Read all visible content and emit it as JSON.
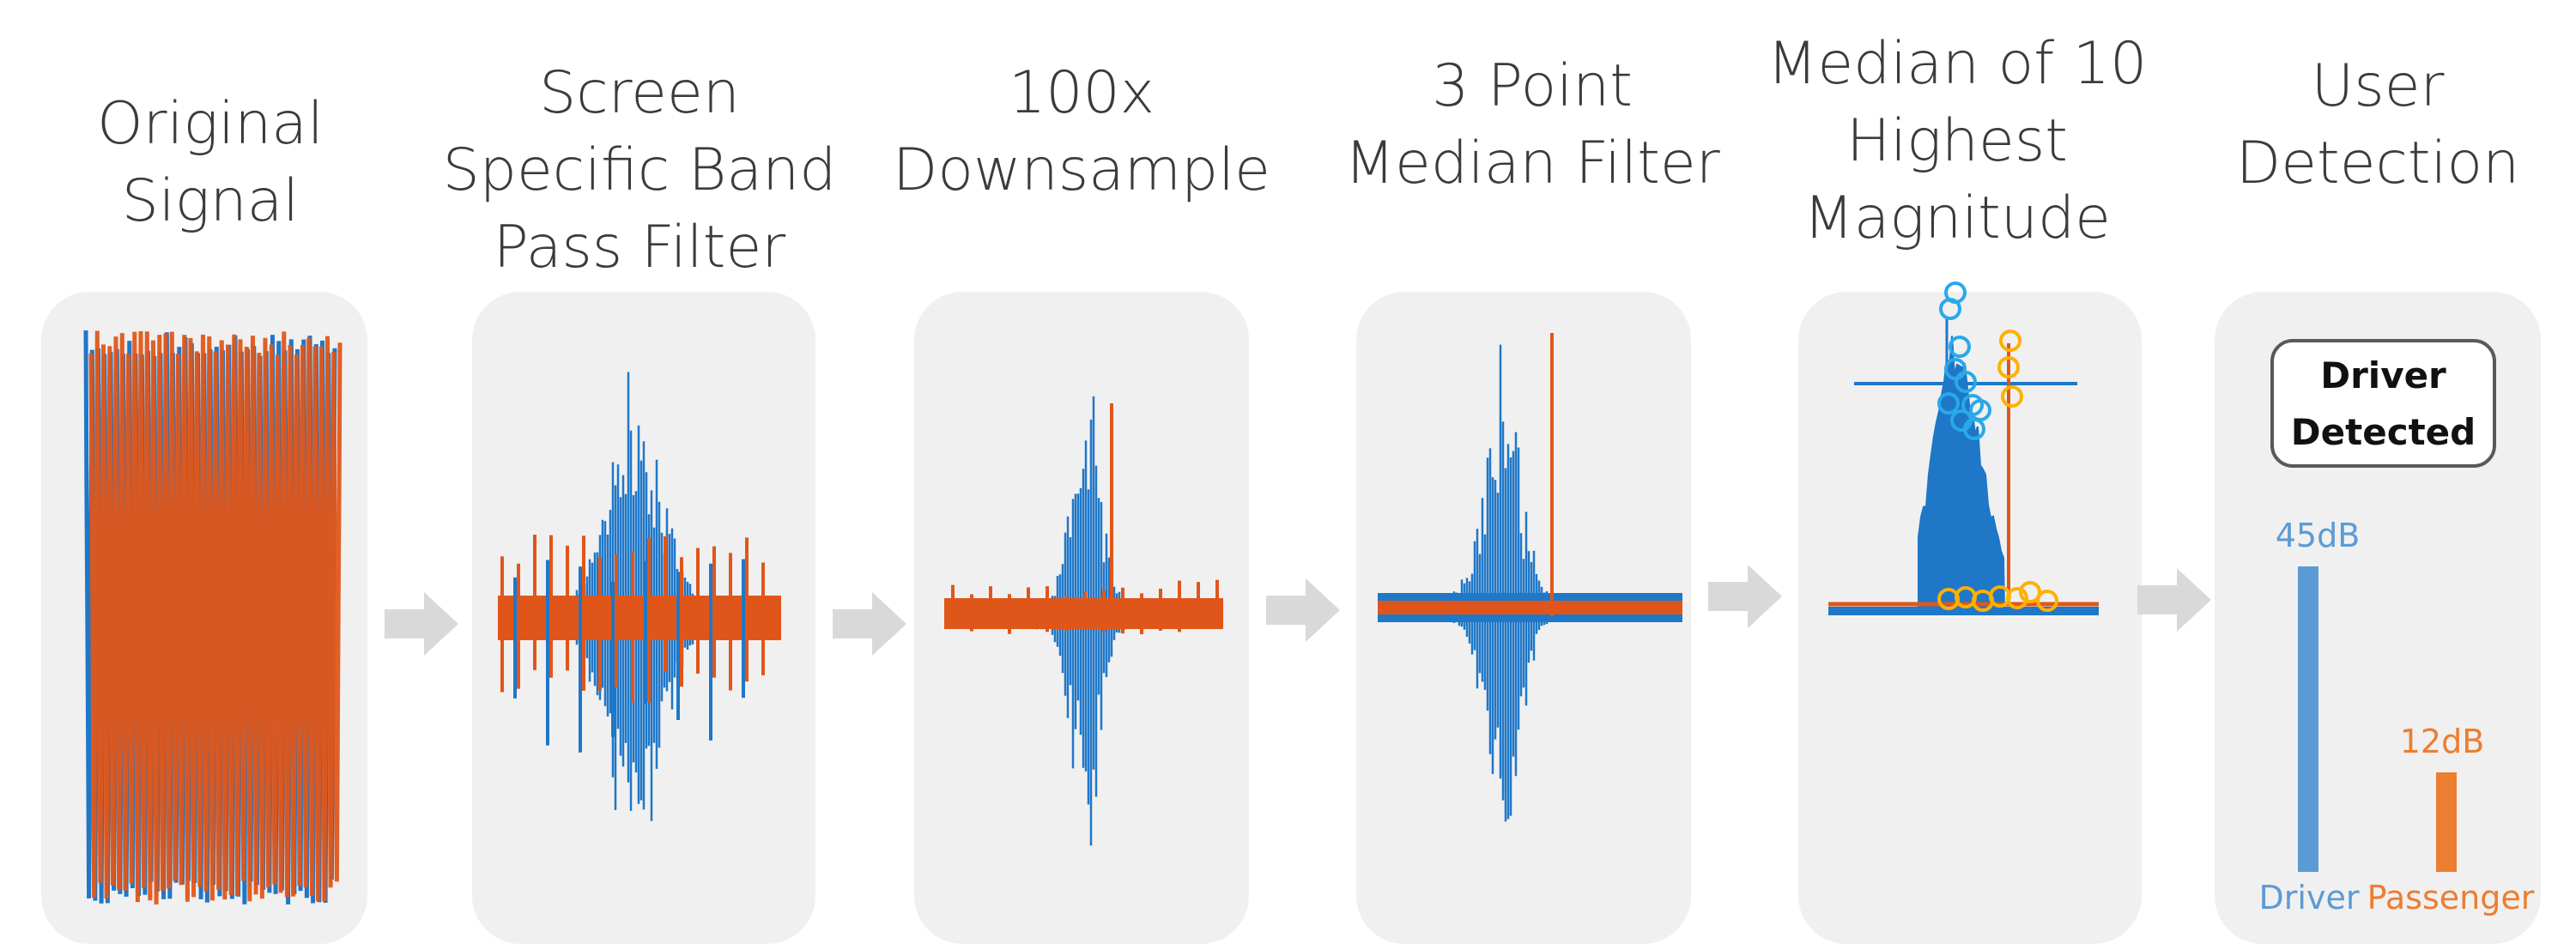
{
  "stages": [
    {
      "title_lines": [
        "Original",
        "Signal"
      ]
    },
    {
      "title_lines": [
        "Screen",
        "Specific Band",
        "Pass Filter"
      ]
    },
    {
      "title_lines": [
        "100x",
        "Downsample"
      ]
    },
    {
      "title_lines": [
        "3 Point",
        "Median Filter"
      ]
    },
    {
      "title_lines": [
        "Median of 10",
        "Highest",
        "Magnitude"
      ]
    },
    {
      "title_lines": [
        "User",
        "Detection"
      ]
    }
  ],
  "detection": {
    "box_lines": [
      "Driver",
      "Detected"
    ],
    "bars": [
      {
        "name": "Driver",
        "value_label": "45dB",
        "value": 45,
        "color": "#5b9bd5"
      },
      {
        "name": "Passenger",
        "value_label": "12dB",
        "value": 12,
        "color": "#ed7d31"
      }
    ]
  },
  "colors": {
    "series_blue": "#1f77c8",
    "series_orange": "#e0561a",
    "marker_blue": "#29a9e8",
    "marker_orange": "#ffb000",
    "panel_bg": "#f0f0f0",
    "arrow": "#d9d9d9"
  }
}
